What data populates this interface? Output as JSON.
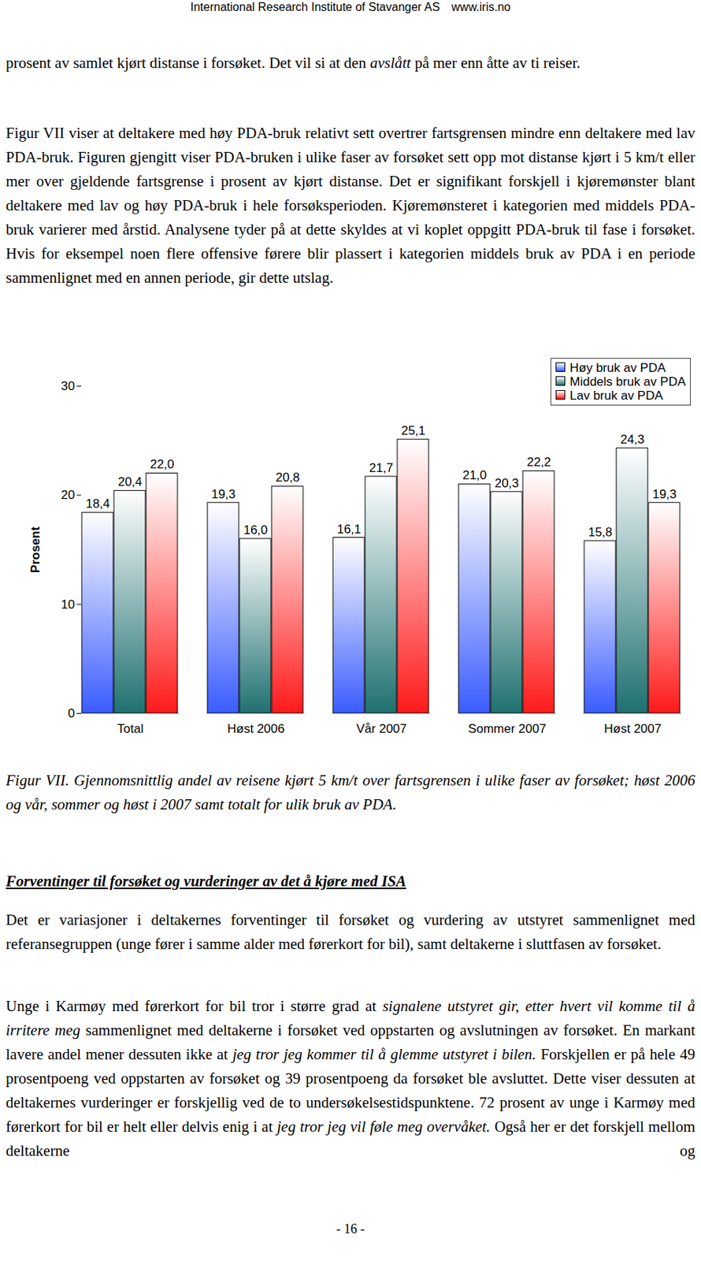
{
  "header": {
    "left": "International Research Institute of Stavanger AS",
    "right": "www.iris.no"
  },
  "paragraphs_top": [
    {
      "runs": [
        {
          "text": "prosent av samlet kjørt distanse i forsøket. Det vil si at den "
        },
        {
          "text": "avslått",
          "italic": true
        },
        {
          "text": " på mer enn åtte av ti reiser."
        }
      ]
    },
    {
      "runs": [
        {
          "text": "Figur VII viser at deltakere med høy PDA-bruk relativt sett overtrer fartsgrensen mindre enn deltakere med lav PDA-bruk. Figuren gjengitt viser PDA-bruken i ulike faser av forsøket sett opp mot distanse kjørt i 5 km/t eller mer over gjeldende fartsgrense i prosent av kjørt distanse. Det er signifikant forskjell i kjøremønster blant deltakere med lav og høy PDA-bruk i hele forsøksperioden. Kjøremønsteret i kategorien med middels PDA-bruk varierer med årstid. Analysene tyder på at dette skyldes at vi koplet oppgitt PDA-bruk til fase i forsøket. Hvis for eksempel noen flere offensive førere blir plassert i kategorien middels bruk av PDA i en periode sammenlignet med en annen periode, gir dette utslag."
        }
      ]
    }
  ],
  "chart_data": {
    "type": "bar",
    "y_label": "Prosent",
    "categories": [
      "Total",
      "Høst 2006",
      "Vår 2007",
      "Sommer 2007",
      "Høst 2007"
    ],
    "series": [
      {
        "name": "Høy bruk av PDA",
        "color": "#3a5cff",
        "values": [
          18.4,
          19.3,
          16.1,
          21.0,
          15.8
        ],
        "value_labels": [
          "18,4",
          "19,3",
          "16,1",
          "21,0",
          "15,8"
        ]
      },
      {
        "name": "Middels bruk av PDA",
        "color": "#1f7070",
        "values": [
          20.4,
          16.0,
          21.7,
          20.3,
          24.3
        ],
        "value_labels": [
          "20,4",
          "16,0",
          "21,7",
          "20,3",
          "24,3"
        ]
      },
      {
        "name": "Lav bruk av PDA",
        "color": "#ff1a1a",
        "values": [
          22.0,
          20.8,
          25.1,
          22.2,
          19.3
        ],
        "value_labels": [
          "22,0",
          "20,8",
          "25,1",
          "22,2",
          "19,3"
        ]
      }
    ],
    "ylim": [
      0,
      30
    ],
    "yticks": [
      0,
      10,
      20,
      30
    ],
    "grid": false,
    "legend": "top-right",
    "data_labels": true
  },
  "caption": {
    "runs": [
      {
        "text": "Figur VII. Gjennomsnittlig andel av reisene kjørt 5 km/t over fartsgrensen i ulike faser av forsøket; høst 2006 og vår, sommer og høst i 2007 samt totalt for ulik bruk av PDA.",
        "italic": true
      }
    ]
  },
  "section_heading": "Forventinger til forsøket og vurderinger av det å kjøre med ISA",
  "paragraphs_bottom": [
    {
      "runs": [
        {
          "text": "Det er variasjoner i deltakernes forventinger til forsøket og vurdering av utstyret sammenlignet med referansegruppen (unge fører i samme alder med førerkort for bil), samt deltakerne i sluttfasen av forsøket."
        }
      ]
    },
    {
      "runs": [
        {
          "text": "Unge i Karmøy med førerkort for bil tror i større grad at "
        },
        {
          "text": "signalene utstyret gir, etter hvert vil komme til å irritere meg",
          "italic": true
        },
        {
          "text": " sammenlignet med deltakerne i forsøket ved oppstarten og avslutningen av forsøket. En markant lavere andel mener dessuten ikke at "
        },
        {
          "text": "jeg tror jeg kommer til å glemme utstyret i bilen.",
          "italic": true
        },
        {
          "text": " Forskjellen er på hele 49 prosentpoeng ved oppstarten av forsøket og 39 prosentpoeng da forsøket ble avsluttet. Dette viser dessuten at deltakernes vurderinger er forskjellig ved de to undersøkelsestidspunktene. 72 prosent av unge i Karmøy med førerkort for bil er helt eller delvis enig i at "
        },
        {
          "text": "jeg tror jeg vil føle meg overvåket.",
          "italic": true
        },
        {
          "text": " Også her er det forskjell mellom deltakerne og"
        }
      ]
    }
  ],
  "footer": "- 16 -"
}
